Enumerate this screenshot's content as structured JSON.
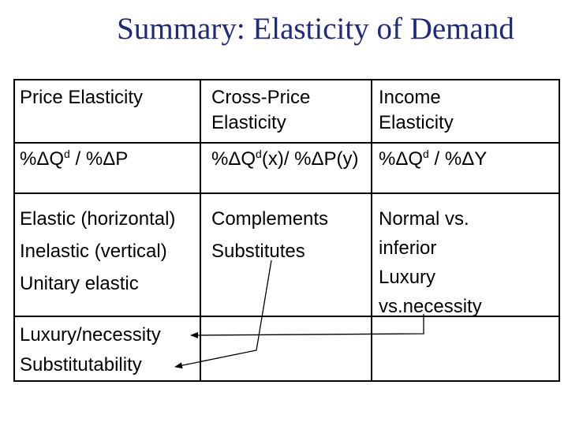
{
  "slide": {
    "title": "Summary: Elasticity of Demand"
  },
  "table": {
    "headers": {
      "price": "Price Elasticity",
      "cross_line1": "Cross-Price",
      "cross_line2": "Elasticity",
      "income_line1": "Income",
      "income_line2": "Elasticity"
    },
    "formulas": {
      "price_a": "%ΔQ",
      "price_sup": "d",
      "price_b": " / %ΔP",
      "cross_a": "%ΔQ",
      "cross_sup": "d",
      "cross_b": "(x)/ %ΔP(y)",
      "income_a": "%ΔQ",
      "income_sup": "d",
      "income_b": " / %ΔY"
    },
    "types": {
      "price": [
        "Elastic (horizontal)",
        "Inelastic (vertical)",
        "Unitary elastic"
      ],
      "cross": [
        "Complements",
        "Substitutes"
      ],
      "income": [
        "Normal vs.",
        "inferior",
        "Luxury",
        "vs.necessity"
      ]
    },
    "determinants": {
      "price": [
        "Luxury/necessity",
        "Substitutability"
      ]
    }
  }
}
